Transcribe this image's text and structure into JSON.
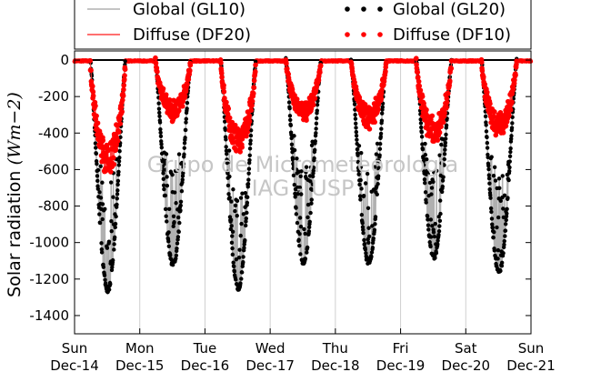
{
  "chart_data": {
    "type": "scatter",
    "title": "",
    "ylabel": "Solar radiation",
    "ylabel_math": "(Wm−2)",
    "watermark": [
      "Grupo de Micrometeorologia",
      "IAG - USP"
    ],
    "xlim": [
      "Dec-14 00:00",
      "Dec-21 00:00"
    ],
    "ylim": [
      -1500,
      50
    ],
    "yticks": [
      0,
      -200,
      -400,
      -600,
      -800,
      -1000,
      -1200,
      -1400
    ],
    "xticks": [
      {
        "day": "Sun",
        "date": "Dec-14"
      },
      {
        "day": "Mon",
        "date": "Dec-15"
      },
      {
        "day": "Tue",
        "date": "Dec-16"
      },
      {
        "day": "Wed",
        "date": "Dec-17"
      },
      {
        "day": "Thu",
        "date": "Dec-18"
      },
      {
        "day": "Fri",
        "date": "Dec-19"
      },
      {
        "day": "Sat",
        "date": "Dec-20"
      },
      {
        "day": "Sun",
        "date": "Dec-21"
      }
    ],
    "grid": "x-only",
    "zero_line": true,
    "legend_position": "top",
    "series": [
      {
        "name": "Global (GL10)",
        "style": "line",
        "color": "#b0b0b0"
      },
      {
        "name": "Diffuse (DF20)",
        "style": "line",
        "color": "#ff4040"
      },
      {
        "name": "Global (GL20)",
        "style": "dots",
        "color": "#000000"
      },
      {
        "name": "Diffuse (DF10)",
        "style": "dots",
        "color": "#ff0000"
      }
    ],
    "daily_peaks": [
      {
        "date": "Dec-14",
        "global_min": -1260,
        "diffuse_min": -630
      },
      {
        "date": "Dec-15",
        "global_min": -1120,
        "diffuse_min": -330
      },
      {
        "date": "Dec-16",
        "global_min": -1250,
        "diffuse_min": -520
      },
      {
        "date": "Dec-17",
        "global_min": -1110,
        "diffuse_min": -330
      },
      {
        "date": "Dec-18",
        "global_min": -1110,
        "diffuse_min": -370
      },
      {
        "date": "Dec-19",
        "global_min": -1080,
        "diffuse_min": -460
      },
      {
        "date": "Dec-20",
        "global_min": -1160,
        "diffuse_min": -420
      }
    ]
  }
}
